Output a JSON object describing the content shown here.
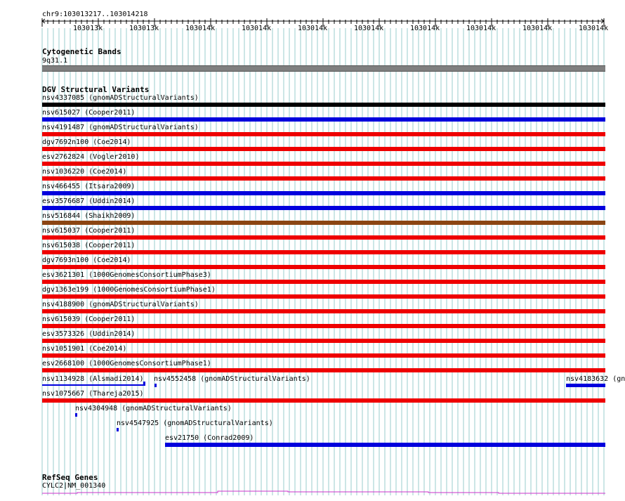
{
  "location": "chr9:103013217..103014218",
  "ruler": {
    "ticks": [
      "103013k",
      "103013k",
      "103014k",
      "103014k",
      "103014k",
      "103014k",
      "103014k",
      "103014k",
      "103014k",
      "103014k"
    ]
  },
  "cytoband_track": {
    "title": "Cytogenetic Bands",
    "band_label": "9q31.1",
    "band_color": "#808080"
  },
  "dgv_track": {
    "title": "DGV Structural Variants",
    "colors": {
      "black": "#000000",
      "blue": "#0000dd",
      "red": "#ee0000",
      "brown": "#8b4513"
    },
    "full_rows": [
      {
        "label": "nsv4337085 (gnomADStructuralVariants)",
        "color": "#000000"
      },
      {
        "label": "nsv615027 (Cooper2011)",
        "color": "#0000dd"
      },
      {
        "label": "nsv4191487 (gnomADStructuralVariants)",
        "color": "#ee0000"
      },
      {
        "label": "dgv7692n100 (Coe2014)",
        "color": "#ee0000"
      },
      {
        "label": "esv2762824 (Vogler2010)",
        "color": "#ee0000"
      },
      {
        "label": "nsv1036220 (Coe2014)",
        "color": "#ee0000"
      },
      {
        "label": "nsv466455 (Itsara2009)",
        "color": "#0000dd"
      },
      {
        "label": "esv3576687 (Uddin2014)",
        "color": "#0000dd"
      },
      {
        "label": "nsv516844 (Shaikh2009)",
        "color": "#8b4513"
      },
      {
        "label": "nsv615037 (Cooper2011)",
        "color": "#ee0000"
      },
      {
        "label": "nsv615038 (Cooper2011)",
        "color": "#ee0000"
      },
      {
        "label": "dgv7693n100 (Coe2014)",
        "color": "#ee0000"
      },
      {
        "label": "esv3621301 (1000GenomesConsortiumPhase3)",
        "color": "#ee0000"
      },
      {
        "label": "dgv1363e199 (1000GenomesConsortiumPhase1)",
        "color": "#ee0000"
      },
      {
        "label": "nsv4188900 (gnomADStructuralVariants)",
        "color": "#ee0000"
      },
      {
        "label": "nsv615039 (Cooper2011)",
        "color": "#ee0000"
      },
      {
        "label": "esv3573326 (Uddin2014)",
        "color": "#ee0000"
      },
      {
        "label": "nsv1051901 (Coe2014)",
        "color": "#ee0000"
      },
      {
        "label": "esv2668100 (1000GenomesConsortiumPhase1)",
        "color": "#ee0000"
      }
    ],
    "partial_features": [
      {
        "label": "nsv1134928 (Alsmadi2014)",
        "color": "#0000dd"
      },
      {
        "label": "nsv4552458 (gnomADStructuralVariants)",
        "color": "#0000dd"
      },
      {
        "label": "nsv4183632 (gn",
        "color": "#0000dd"
      },
      {
        "label": "nsv1075667 (Thareja2015)",
        "color": "#ee0000"
      },
      {
        "label": "nsv4304948 (gnomADStructuralVariants)",
        "color": "#0000dd"
      },
      {
        "label": "nsv4547925 (gnomADStructuralVariants)",
        "color": "#0000dd"
      },
      {
        "label": "esv21750 (Conrad2009)",
        "color": "#0000dd"
      }
    ]
  },
  "refseq_track": {
    "title": "RefSeq Genes",
    "gene_label": "CYLC2|NM_001340",
    "line_color": "#cc33cc"
  },
  "grid_color": "#99cccc"
}
